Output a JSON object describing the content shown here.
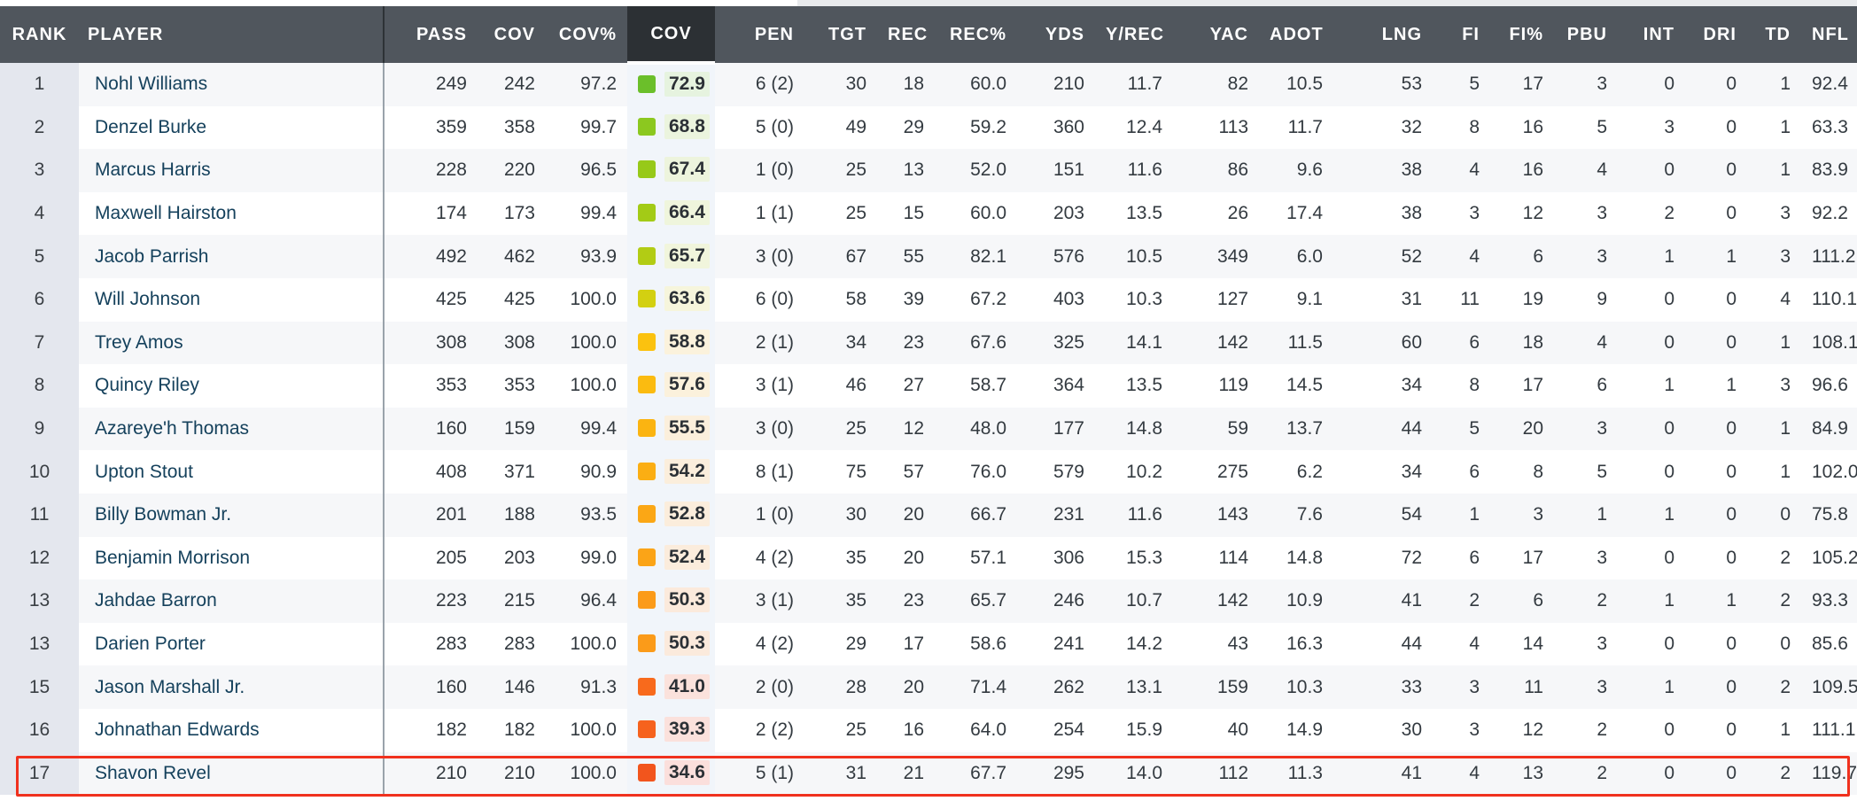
{
  "table": {
    "headers": {
      "rank": "RANK",
      "player": "PLAYER",
      "pass": "PASS",
      "cov": "COV",
      "cov_pct": "COV%",
      "cov_grade": "COV",
      "pen": "PEN",
      "tgt": "TGT",
      "rec": "REC",
      "rec_pct": "REC%",
      "yds": "YDS",
      "y_rec": "Y/REC",
      "yac": "YAC",
      "adot": "ADOT",
      "lng": "LNG",
      "fi": "FI",
      "fi_pct": "FI%",
      "pbu": "PBU",
      "int": "INT",
      "dri": "DRI",
      "td": "TD",
      "nfl": "NFL"
    },
    "highlighted_rank": "17",
    "rows": [
      {
        "rank": "1",
        "player": "Nohl Williams",
        "pass": "249",
        "cov": "242",
        "cov_pct": "97.2",
        "grade": "72.9",
        "grade_color": "#6bbf2a",
        "grade_bg": "#e6f3df",
        "pen": "6 (2)",
        "tgt": "30",
        "rec": "18",
        "rec_pct": "60.0",
        "yds": "210",
        "y_rec": "11.7",
        "yac": "82",
        "adot": "10.5",
        "lng": "53",
        "fi": "5",
        "fi_pct": "17",
        "pbu": "3",
        "int": "0",
        "dri": "0",
        "td": "1",
        "nfl": "92.4"
      },
      {
        "rank": "2",
        "player": "Denzel Burke",
        "pass": "359",
        "cov": "358",
        "cov_pct": "99.7",
        "grade": "68.8",
        "grade_color": "#8cc81f",
        "grade_bg": "#ebf4de",
        "pen": "5 (0)",
        "tgt": "49",
        "rec": "29",
        "rec_pct": "59.2",
        "yds": "360",
        "y_rec": "12.4",
        "yac": "113",
        "adot": "11.7",
        "lng": "32",
        "fi": "8",
        "fi_pct": "16",
        "pbu": "5",
        "int": "3",
        "dri": "0",
        "td": "1",
        "nfl": "63.3"
      },
      {
        "rank": "3",
        "player": "Marcus Harris",
        "pass": "228",
        "cov": "220",
        "cov_pct": "96.5",
        "grade": "67.4",
        "grade_color": "#97c919",
        "grade_bg": "#edf4dd",
        "pen": "1 (0)",
        "tgt": "25",
        "rec": "13",
        "rec_pct": "52.0",
        "yds": "151",
        "y_rec": "11.6",
        "yac": "86",
        "adot": "9.6",
        "lng": "38",
        "fi": "4",
        "fi_pct": "16",
        "pbu": "4",
        "int": "0",
        "dri": "0",
        "td": "1",
        "nfl": "83.9"
      },
      {
        "rank": "4",
        "player": "Maxwell Hairston",
        "pass": "174",
        "cov": "173",
        "cov_pct": "99.4",
        "grade": "66.4",
        "grade_color": "#a3cb16",
        "grade_bg": "#eff5dc",
        "pen": "1 (1)",
        "tgt": "25",
        "rec": "15",
        "rec_pct": "60.0",
        "yds": "203",
        "y_rec": "13.5",
        "yac": "26",
        "adot": "17.4",
        "lng": "38",
        "fi": "3",
        "fi_pct": "12",
        "pbu": "3",
        "int": "2",
        "dri": "0",
        "td": "3",
        "nfl": "92.2"
      },
      {
        "rank": "5",
        "player": "Jacob Parrish",
        "pass": "492",
        "cov": "462",
        "cov_pct": "93.9",
        "grade": "65.7",
        "grade_color": "#b2cc14",
        "grade_bg": "#f1f5dc",
        "pen": "3 (0)",
        "tgt": "67",
        "rec": "55",
        "rec_pct": "82.1",
        "yds": "576",
        "y_rec": "10.5",
        "yac": "349",
        "adot": "6.0",
        "lng": "52",
        "fi": "4",
        "fi_pct": "6",
        "pbu": "3",
        "int": "1",
        "dri": "1",
        "td": "3",
        "nfl": "111.2"
      },
      {
        "rank": "6",
        "player": "Will Johnson",
        "pass": "425",
        "cov": "425",
        "cov_pct": "100.0",
        "grade": "63.6",
        "grade_color": "#d3d011",
        "grade_bg": "#f6f5dc",
        "pen": "6 (0)",
        "tgt": "58",
        "rec": "39",
        "rec_pct": "67.2",
        "yds": "403",
        "y_rec": "10.3",
        "yac": "127",
        "adot": "9.1",
        "lng": "31",
        "fi": "11",
        "fi_pct": "19",
        "pbu": "9",
        "int": "0",
        "dri": "0",
        "td": "4",
        "nfl": "110.1"
      },
      {
        "rank": "7",
        "player": "Trey Amos",
        "pass": "308",
        "cov": "308",
        "cov_pct": "100.0",
        "grade": "58.8",
        "grade_color": "#fbc20f",
        "grade_bg": "#fbf2dc",
        "pen": "2 (1)",
        "tgt": "34",
        "rec": "23",
        "rec_pct": "67.6",
        "yds": "325",
        "y_rec": "14.1",
        "yac": "142",
        "adot": "11.5",
        "lng": "60",
        "fi": "6",
        "fi_pct": "18",
        "pbu": "4",
        "int": "0",
        "dri": "0",
        "td": "1",
        "nfl": "108.1"
      },
      {
        "rank": "8",
        "player": "Quincy Riley",
        "pass": "353",
        "cov": "353",
        "cov_pct": "100.0",
        "grade": "57.6",
        "grade_color": "#fbbb10",
        "grade_bg": "#fbf1dc",
        "pen": "3 (1)",
        "tgt": "46",
        "rec": "27",
        "rec_pct": "58.7",
        "yds": "364",
        "y_rec": "13.5",
        "yac": "119",
        "adot": "14.5",
        "lng": "34",
        "fi": "8",
        "fi_pct": "17",
        "pbu": "6",
        "int": "1",
        "dri": "1",
        "td": "3",
        "nfl": "96.6"
      },
      {
        "rank": "9",
        "player": "Azareye'h Thomas",
        "pass": "160",
        "cov": "159",
        "cov_pct": "99.4",
        "grade": "55.5",
        "grade_color": "#fbb411",
        "grade_bg": "#fbefdc",
        "pen": "3 (0)",
        "tgt": "25",
        "rec": "12",
        "rec_pct": "48.0",
        "yds": "177",
        "y_rec": "14.8",
        "yac": "59",
        "adot": "13.7",
        "lng": "44",
        "fi": "5",
        "fi_pct": "20",
        "pbu": "3",
        "int": "0",
        "dri": "0",
        "td": "1",
        "nfl": "84.9"
      },
      {
        "rank": "10",
        "player": "Upton Stout",
        "pass": "408",
        "cov": "371",
        "cov_pct": "90.9",
        "grade": "54.2",
        "grade_color": "#fbae13",
        "grade_bg": "#fbeedc",
        "pen": "8 (1)",
        "tgt": "75",
        "rec": "57",
        "rec_pct": "76.0",
        "yds": "579",
        "y_rec": "10.2",
        "yac": "275",
        "adot": "6.2",
        "lng": "34",
        "fi": "6",
        "fi_pct": "8",
        "pbu": "5",
        "int": "0",
        "dri": "0",
        "td": "1",
        "nfl": "102.0"
      },
      {
        "rank": "11",
        "player": "Billy Bowman Jr.",
        "pass": "201",
        "cov": "188",
        "cov_pct": "93.5",
        "grade": "52.8",
        "grade_color": "#fba715",
        "grade_bg": "#fbeddc",
        "pen": "1 (0)",
        "tgt": "30",
        "rec": "20",
        "rec_pct": "66.7",
        "yds": "231",
        "y_rec": "11.6",
        "yac": "143",
        "adot": "7.6",
        "lng": "54",
        "fi": "1",
        "fi_pct": "3",
        "pbu": "1",
        "int": "1",
        "dri": "0",
        "td": "0",
        "nfl": "75.8"
      },
      {
        "rank": "12",
        "player": "Benjamin Morrison",
        "pass": "205",
        "cov": "203",
        "cov_pct": "99.0",
        "grade": "52.4",
        "grade_color": "#fba417",
        "grade_bg": "#fbecdc",
        "pen": "4 (2)",
        "tgt": "35",
        "rec": "20",
        "rec_pct": "57.1",
        "yds": "306",
        "y_rec": "15.3",
        "yac": "114",
        "adot": "14.8",
        "lng": "72",
        "fi": "6",
        "fi_pct": "17",
        "pbu": "3",
        "int": "0",
        "dri": "0",
        "td": "2",
        "nfl": "105.2"
      },
      {
        "rank": "13",
        "player": "Jahdae Barron",
        "pass": "223",
        "cov": "215",
        "cov_pct": "96.4",
        "grade": "50.3",
        "grade_color": "#fb9b19",
        "grade_bg": "#fbeadc",
        "pen": "3 (1)",
        "tgt": "35",
        "rec": "23",
        "rec_pct": "65.7",
        "yds": "246",
        "y_rec": "10.7",
        "yac": "142",
        "adot": "10.9",
        "lng": "41",
        "fi": "2",
        "fi_pct": "6",
        "pbu": "2",
        "int": "1",
        "dri": "1",
        "td": "2",
        "nfl": "93.3"
      },
      {
        "rank": "13",
        "player": "Darien Porter",
        "pass": "283",
        "cov": "283",
        "cov_pct": "100.0",
        "grade": "50.3",
        "grade_color": "#fb9b19",
        "grade_bg": "#fbeadc",
        "pen": "4 (2)",
        "tgt": "29",
        "rec": "17",
        "rec_pct": "58.6",
        "yds": "241",
        "y_rec": "14.2",
        "yac": "43",
        "adot": "16.3",
        "lng": "44",
        "fi": "4",
        "fi_pct": "14",
        "pbu": "3",
        "int": "0",
        "dri": "0",
        "td": "0",
        "nfl": "85.6"
      },
      {
        "rank": "15",
        "player": "Jason Marshall Jr.",
        "pass": "160",
        "cov": "146",
        "cov_pct": "91.3",
        "grade": "41.0",
        "grade_color": "#f86a1c",
        "grade_bg": "#fbe2dc",
        "pen": "2 (0)",
        "tgt": "28",
        "rec": "20",
        "rec_pct": "71.4",
        "yds": "262",
        "y_rec": "13.1",
        "yac": "159",
        "adot": "10.3",
        "lng": "33",
        "fi": "3",
        "fi_pct": "11",
        "pbu": "3",
        "int": "1",
        "dri": "0",
        "td": "2",
        "nfl": "109.5"
      },
      {
        "rank": "16",
        "player": "Johnathan Edwards",
        "pass": "182",
        "cov": "182",
        "cov_pct": "100.0",
        "grade": "39.3",
        "grade_color": "#f6621d",
        "grade_bg": "#fbe1dc",
        "pen": "2 (2)",
        "tgt": "25",
        "rec": "16",
        "rec_pct": "64.0",
        "yds": "254",
        "y_rec": "15.9",
        "yac": "40",
        "adot": "14.9",
        "lng": "30",
        "fi": "3",
        "fi_pct": "12",
        "pbu": "2",
        "int": "0",
        "dri": "0",
        "td": "1",
        "nfl": "111.1"
      },
      {
        "rank": "17",
        "player": "Shavon Revel",
        "pass": "210",
        "cov": "210",
        "cov_pct": "100.0",
        "grade": "34.6",
        "grade_color": "#f2551d",
        "grade_bg": "#fbdfdc",
        "pen": "5 (1)",
        "tgt": "31",
        "rec": "21",
        "rec_pct": "67.7",
        "yds": "295",
        "y_rec": "14.0",
        "yac": "112",
        "adot": "11.3",
        "lng": "41",
        "fi": "4",
        "fi_pct": "13",
        "pbu": "2",
        "int": "0",
        "dri": "0",
        "td": "2",
        "nfl": "119.7"
      }
    ]
  }
}
